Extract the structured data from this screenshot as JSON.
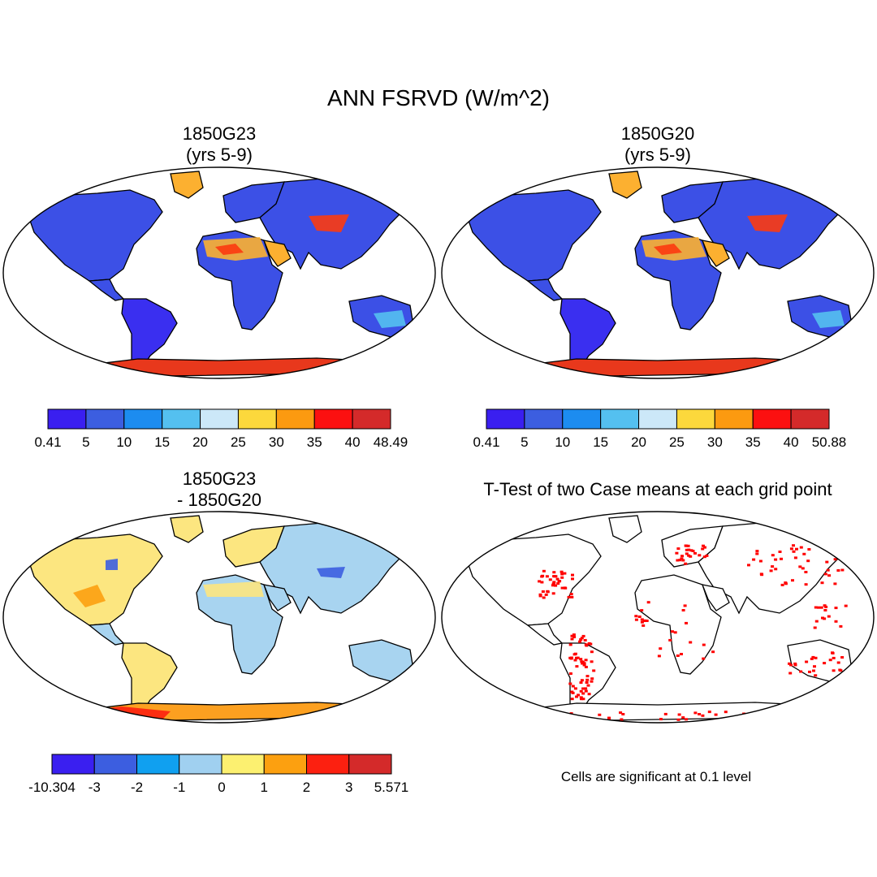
{
  "figure": {
    "title": "ANN FSRVD (W/m^2)"
  },
  "panels": [
    {
      "id": "case1",
      "title_lines": [
        "1850G23",
        "(yrs 5-9)"
      ],
      "colorbar": {
        "colors": [
          "#3a1ff0",
          "#3c5ee0",
          "#1c8cf0",
          "#54c0f0",
          "#cce8f8",
          "#fcd83c",
          "#fc9a10",
          "#fc1010",
          "#d42a2a"
        ],
        "labels": [
          "0.41",
          "5",
          "10",
          "15",
          "20",
          "25",
          "30",
          "35",
          "40",
          "48.49"
        ]
      }
    },
    {
      "id": "case2",
      "title_lines": [
        "1850G20",
        "(yrs 5-9)"
      ],
      "colorbar": {
        "colors": [
          "#3a1ff0",
          "#3c5ee0",
          "#1c8cf0",
          "#54c0f0",
          "#cce8f8",
          "#fcd83c",
          "#fc9a10",
          "#fc1010",
          "#d42a2a"
        ],
        "labels": [
          "0.41",
          "5",
          "10",
          "15",
          "20",
          "25",
          "30",
          "35",
          "40",
          "50.88"
        ]
      }
    },
    {
      "id": "diff",
      "title_lines": [
        "1850G23",
        "- 1850G20"
      ],
      "colorbar": {
        "colors": [
          "#3a1ff0",
          "#3c5ee0",
          "#10a0f0",
          "#a0d0f0",
          "#fcf070",
          "#fca010",
          "#fc2010",
          "#d42a2a"
        ],
        "labels": [
          "-10.304",
          "-3",
          "-2",
          "-1",
          "0",
          "1",
          "2",
          "3",
          "5.571"
        ]
      }
    },
    {
      "id": "ttest",
      "title_lines": [
        "T-Test of two Case means at each grid point"
      ],
      "note": "Cells are significant at 0.1 level"
    }
  ],
  "colors": {
    "ocean": "#ffffff",
    "outline": "#000000",
    "land_case": "#3c50e6",
    "land_case_dark": "#3a2ff0",
    "desert_case": "#fcb030",
    "desert_case_hot": "#fc3a10",
    "ice_case": "#e8381c",
    "land_diff": "#a8d4f0",
    "land_diff_warm": "#fce680",
    "ice_diff": "#fca020",
    "significant": "#ff0000"
  }
}
